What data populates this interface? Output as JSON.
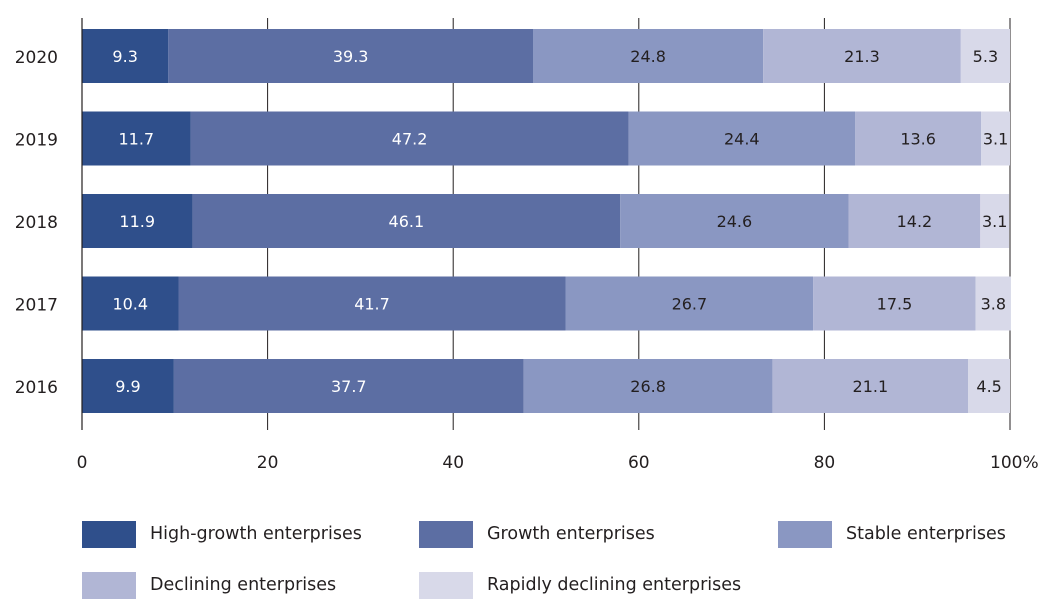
{
  "chart_data": {
    "type": "bar",
    "orientation": "horizontal",
    "stacked": true,
    "categories": [
      "2020",
      "2019",
      "2018",
      "2017",
      "2016"
    ],
    "series": [
      {
        "name": "High-growth enterprises",
        "color": "#2f4f8b",
        "values": [
          9.3,
          11.7,
          11.9,
          10.4,
          9.9
        ]
      },
      {
        "name": "Growth enterprises",
        "color": "#5c6ea3",
        "values": [
          39.3,
          47.2,
          46.1,
          41.7,
          37.7
        ]
      },
      {
        "name": "Stable enterprises",
        "color": "#8a97c2",
        "values": [
          24.8,
          24.4,
          24.6,
          26.7,
          26.8
        ]
      },
      {
        "name": "Declining enterprises",
        "color": "#b1b6d5",
        "values": [
          21.3,
          13.6,
          14.2,
          17.5,
          21.1
        ]
      },
      {
        "name": "Rapidly declining enterprises",
        "color": "#d8d9e9",
        "values": [
          5.3,
          3.1,
          3.1,
          3.8,
          4.5
        ]
      }
    ],
    "xlim": [
      0,
      100
    ],
    "xticks": [
      "0",
      "20",
      "40",
      "60",
      "80",
      "100%"
    ],
    "grid": "vertical",
    "legend_position": "bottom"
  },
  "colors": {
    "label_light": "#ffffff",
    "label_dark": "#231f20",
    "grid": "#231f20"
  }
}
